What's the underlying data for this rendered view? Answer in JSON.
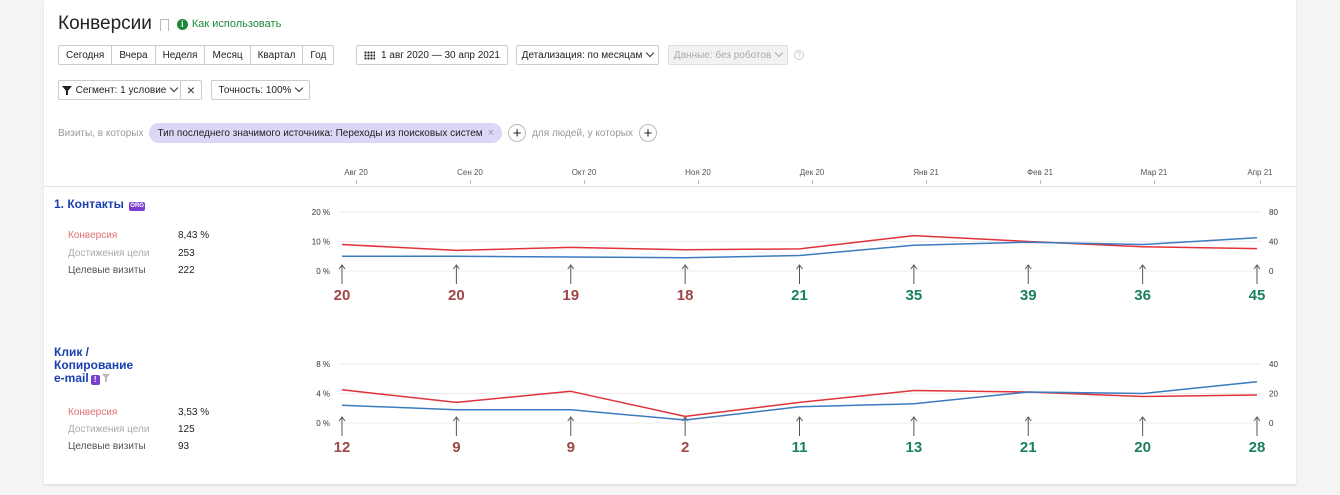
{
  "header": {
    "title": "Конверсии",
    "how_to_use": "Как использовать"
  },
  "toolbar": {
    "periods": [
      "Сегодня",
      "Вчера",
      "Неделя",
      "Месяц",
      "Квартал",
      "Год"
    ],
    "date_range": "1 авг 2020 — 30 апр 2021",
    "detail": "Детализация: по месяцам",
    "data_filter": "Данные: без роботов",
    "segment": "Сегмент: 1 условие",
    "accuracy": "Точность: 100%"
  },
  "visits_filter": {
    "prefix": "Визиты, в которых",
    "chip": "Тип последнего значимого источника: Переходы из поисковых систем",
    "people": "для людей, у которых"
  },
  "months": [
    "Авг 20",
    "Сен 20",
    "Окт 20",
    "Ноя 20",
    "Дек 20",
    "Янв 21",
    "Фев 21",
    "Мар 21",
    "Апр 21"
  ],
  "goals": [
    {
      "name": "1. Контакты",
      "badge": "ORG",
      "metrics": {
        "conversion_label": "Конверсия",
        "conversion": "8,43 %",
        "achievements_label": "Достижения цели",
        "achievements": "253",
        "visits_label": "Целевые визиты",
        "visits": "222"
      }
    },
    {
      "name_lines": [
        "Клик /",
        "Копирование",
        "e-mail"
      ],
      "badge": "!",
      "metrics": {
        "conversion_label": "Конверсия",
        "conversion": "3,53 %",
        "achievements_label": "Достижения цели",
        "achievements": "125",
        "visits_label": "Целевые визиты",
        "visits": "93"
      }
    }
  ],
  "colors": {
    "conversion_line": "#e0333a",
    "visits_line": "#3b7bbf",
    "count_low": "#a04646",
    "count_high": "#1a8060",
    "link": "#1a3fb0",
    "accent_green": "#1b8a3a"
  },
  "chart_data": [
    {
      "type": "line",
      "x": [
        "Авг 20",
        "Сен 20",
        "Окт 20",
        "Ноя 20",
        "Дек 20",
        "Янв 21",
        "Фев 21",
        "Мар 21",
        "Апр 21"
      ],
      "left_axis": {
        "ticks": [
          "0 %",
          "10 %",
          "20 %"
        ],
        "ylim": [
          0,
          20
        ]
      },
      "right_axis": {
        "ticks": [
          "0",
          "40",
          "80"
        ],
        "ylim": [
          0,
          80
        ]
      },
      "series": [
        {
          "axis": "left",
          "values": [
            9,
            7,
            8,
            7.2,
            7.5,
            12,
            10,
            8.2,
            7.6
          ]
        },
        {
          "axis": "right",
          "values": [
            20,
            20,
            19,
            18,
            21,
            35,
            39,
            36,
            45
          ]
        }
      ],
      "counts": [
        20,
        20,
        19,
        18,
        21,
        35,
        39,
        36,
        45
      ],
      "count_colors": [
        "low",
        "low",
        "low",
        "low",
        "high",
        "high",
        "high",
        "high",
        "high"
      ]
    },
    {
      "type": "line",
      "x": [
        "Авг 20",
        "Сен 20",
        "Окт 20",
        "Ноя 20",
        "Дек 20",
        "Янв 21",
        "Фев 21",
        "Мар 21",
        "Апр 21"
      ],
      "left_axis": {
        "ticks": [
          "0 %",
          "4 %",
          "8 %"
        ],
        "ylim": [
          0,
          8
        ]
      },
      "right_axis": {
        "ticks": [
          "0",
          "20",
          "40"
        ],
        "ylim": [
          0,
          40
        ]
      },
      "series": [
        {
          "axis": "left",
          "values": [
            4.5,
            2.8,
            4.3,
            0.9,
            2.8,
            4.4,
            4.2,
            3.6,
            3.8
          ]
        },
        {
          "axis": "right",
          "values": [
            12,
            9,
            9,
            2,
            11,
            13,
            21,
            20,
            28
          ]
        }
      ],
      "counts": [
        12,
        9,
        9,
        2,
        11,
        13,
        21,
        20,
        28
      ],
      "count_colors": [
        "low",
        "low",
        "low",
        "low",
        "high",
        "high",
        "high",
        "high",
        "high"
      ]
    }
  ]
}
